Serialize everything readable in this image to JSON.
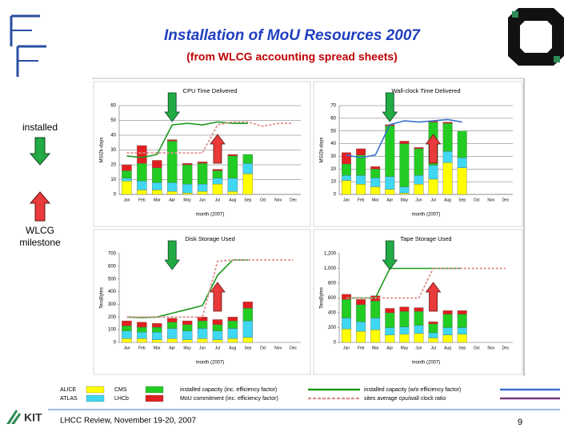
{
  "slide": {
    "title": "Installation of MoU Resources 2007",
    "subtitle": "(from WLCG accounting spread sheets)",
    "installed_note": "installed",
    "milestone_note": [
      "WLCG",
      "milestone"
    ],
    "footer": "LHCC Review, November 19-20, 2007",
    "page": "9",
    "logo": "KIT"
  },
  "legend": [
    {
      "name": "ALICE",
      "color": "#ffff00",
      "style": "box"
    },
    {
      "name": "CMS",
      "color": "#22cc22",
      "style": "box"
    },
    {
      "name": "installed capacity (inc. efficiency factor)",
      "color": "#1a9a1a",
      "style": "line"
    },
    {
      "name": "installed capacity (w/o efficiency factor)",
      "color": "#3a6fd0",
      "style": "line"
    },
    {
      "name": "ATLAS",
      "color": "#3fd7f2",
      "style": "box"
    },
    {
      "name": "LHCb",
      "color": "#e02020",
      "style": "box"
    },
    {
      "name": "MoU commitment (inc. efficiency factor)",
      "color": "#e09090",
      "style": "dash"
    },
    {
      "name": "sites average cpu/wall clock ratio",
      "color": "#7a3a7a",
      "style": "line"
    }
  ],
  "chart_data": [
    {
      "type": "bar",
      "title": "CPU Time Delivered",
      "ylabel": "MSI2k-days",
      "xlabel": "month (2007)",
      "categories": [
        "Jan",
        "Feb",
        "Mar",
        "Apr",
        "May",
        "Jun",
        "Jul",
        "Aug",
        "Sep",
        "Oct",
        "Nov",
        "Dec"
      ],
      "ylim": [
        0,
        60
      ],
      "yticks": [
        0,
        10,
        20,
        30,
        40,
        50,
        60
      ],
      "grid": true,
      "series": [
        {
          "name": "ALICE",
          "type": "bar",
          "color": "#ffff00",
          "values": [
            9,
            3,
            3,
            2,
            1,
            2,
            7,
            2,
            14,
            null,
            null,
            null
          ]
        },
        {
          "name": "ATLAS",
          "type": "bar",
          "color": "#3fd7f2",
          "values": [
            2,
            6,
            5,
            6,
            6,
            5,
            4,
            9,
            7,
            null,
            null,
            null
          ]
        },
        {
          "name": "CMS",
          "type": "bar",
          "color": "#22cc22",
          "values": [
            5,
            12,
            10,
            28,
            13,
            14,
            5,
            15,
            6,
            null,
            null,
            null
          ]
        },
        {
          "name": "LHCb",
          "type": "bar",
          "color": "#e02020",
          "values": [
            4,
            12,
            5,
            1,
            1,
            1,
            1,
            1,
            0,
            null,
            null,
            null
          ]
        },
        {
          "name": "installed capacity (inc. efficiency factor)",
          "type": "line",
          "color": "#1a9a1a",
          "values": [
            26,
            25,
            27,
            47,
            48,
            47,
            49,
            48,
            48,
            null,
            null,
            null
          ]
        },
        {
          "name": "MoU commitment (inc. efficiency factor)",
          "type": "line",
          "dash": true,
          "color": "#e09090",
          "values": [
            28,
            28,
            28,
            28,
            28,
            28,
            47,
            49,
            49,
            46,
            48,
            48
          ]
        }
      ]
    },
    {
      "type": "bar",
      "title": "Wall-clock Time Delivered",
      "ylabel": "MSI2k-days",
      "xlabel": "month (2007)",
      "categories": [
        "Jan",
        "Feb",
        "Mar",
        "Apr",
        "May",
        "Jun",
        "Jul",
        "Aug",
        "Sep",
        "Oct",
        "Nov",
        "Dec"
      ],
      "ylim": [
        0,
        70
      ],
      "yticks": [
        0,
        10,
        20,
        30,
        40,
        50,
        60,
        70
      ],
      "grid": true,
      "series": [
        {
          "name": "ALICE",
          "type": "bar",
          "color": "#ffff00",
          "values": [
            11,
            8,
            6,
            4,
            1,
            8,
            12,
            25,
            21,
            null,
            null,
            null
          ]
        },
        {
          "name": "ATLAS",
          "type": "bar",
          "color": "#3fd7f2",
          "values": [
            4,
            7,
            7,
            10,
            5,
            7,
            11,
            9,
            8,
            null,
            null,
            null
          ]
        },
        {
          "name": "CMS",
          "type": "bar",
          "color": "#22cc22",
          "values": [
            9,
            16,
            7,
            40,
            34,
            21,
            34,
            22,
            21,
            null,
            null,
            null
          ]
        },
        {
          "name": "LHCb",
          "type": "bar",
          "color": "#e02020",
          "values": [
            9,
            5,
            2,
            1,
            2,
            1,
            1,
            1,
            0,
            null,
            null,
            null
          ]
        },
        {
          "name": "installed capacity (w/o efficiency factor)",
          "type": "line",
          "color": "#3a6fd0",
          "values": [
            31,
            29,
            31,
            55,
            58,
            57,
            58,
            59,
            57,
            null,
            null,
            null
          ]
        }
      ]
    },
    {
      "type": "bar",
      "title": "Disk Storage Used",
      "ylabel": "TeraBytes",
      "xlabel": "month (2007)",
      "categories": [
        "Jan",
        "Feb",
        "Mar",
        "Apr",
        "May",
        "Jun",
        "Jul",
        "Aug",
        "Sep",
        "Oct",
        "Nov",
        "Dec"
      ],
      "ylim": [
        0,
        700
      ],
      "yticks": [
        0,
        100,
        200,
        300,
        400,
        500,
        600,
        700
      ],
      "grid": false,
      "series": [
        {
          "name": "ALICE",
          "type": "bar",
          "color": "#ffff00",
          "values": [
            30,
            30,
            20,
            30,
            20,
            30,
            20,
            30,
            40,
            null,
            null,
            null
          ]
        },
        {
          "name": "ATLAS",
          "type": "bar",
          "color": "#3fd7f2",
          "values": [
            60,
            50,
            60,
            80,
            70,
            80,
            70,
            80,
            130,
            null,
            null,
            null
          ]
        },
        {
          "name": "CMS",
          "type": "bar",
          "color": "#22cc22",
          "values": [
            40,
            40,
            40,
            50,
            50,
            60,
            50,
            60,
            100,
            null,
            null,
            null
          ]
        },
        {
          "name": "LHCb",
          "type": "bar",
          "color": "#e02020",
          "values": [
            40,
            40,
            30,
            30,
            30,
            30,
            40,
            30,
            50,
            null,
            null,
            null
          ]
        },
        {
          "name": "installed capacity (inc. efficiency factor)",
          "type": "line",
          "color": "#1a9a1a",
          "values": [
            200,
            195,
            200,
            230,
            260,
            290,
            530,
            650,
            650,
            null,
            null,
            null
          ]
        },
        {
          "name": "MoU commitment (inc. efficiency factor)",
          "type": "line",
          "dash": true,
          "color": "#e09090",
          "values": [
            200,
            200,
            200,
            200,
            200,
            200,
            640,
            650,
            650,
            650,
            650,
            650
          ]
        }
      ]
    },
    {
      "type": "bar",
      "title": "Tape Storage Used",
      "ylabel": "TeraBytes",
      "xlabel": "month (2007)",
      "categories": [
        "Jan",
        "Feb",
        "Mar",
        "Apr",
        "May",
        "Jun",
        "Jul",
        "Aug",
        "Sep",
        "Oct",
        "Nov",
        "Dec"
      ],
      "ylim": [
        0,
        1200
      ],
      "yticks": [
        0,
        200,
        400,
        600,
        800,
        {
          "value": 1000,
          "label": "1,000"
        },
        {
          "value": 1200,
          "label": "1,200"
        }
      ],
      "grid": false,
      "series": [
        {
          "name": "ALICE",
          "type": "bar",
          "color": "#ffff00",
          "values": [
            180,
            150,
            170,
            100,
            110,
            120,
            60,
            100,
            110,
            null,
            null,
            null
          ]
        },
        {
          "name": "ATLAS",
          "type": "bar",
          "color": "#3fd7f2",
          "values": [
            150,
            130,
            160,
            100,
            100,
            110,
            70,
            100,
            90,
            null,
            null,
            null
          ]
        },
        {
          "name": "CMS",
          "type": "bar",
          "color": "#22cc22",
          "values": [
            250,
            230,
            230,
            200,
            210,
            190,
            120,
            180,
            180,
            null,
            null,
            null
          ]
        },
        {
          "name": "LHCb",
          "type": "bar",
          "color": "#e02020",
          "values": [
            70,
            70,
            70,
            60,
            60,
            50,
            30,
            50,
            50,
            null,
            null,
            null
          ]
        },
        {
          "name": "installed capacity (inc. efficiency factor)",
          "type": "line",
          "color": "#1a9a1a",
          "values": [
            600,
            600,
            600,
            1000,
            1000,
            1000,
            1000,
            1000,
            1000,
            null,
            null,
            null
          ]
        },
        {
          "name": "MoU commitment (inc. efficiency factor)",
          "type": "line",
          "dash": true,
          "color": "#e09090",
          "values": [
            600,
            600,
            600,
            600,
            600,
            600,
            1000,
            1000,
            1000,
            1000,
            1000,
            1000
          ]
        }
      ]
    }
  ]
}
